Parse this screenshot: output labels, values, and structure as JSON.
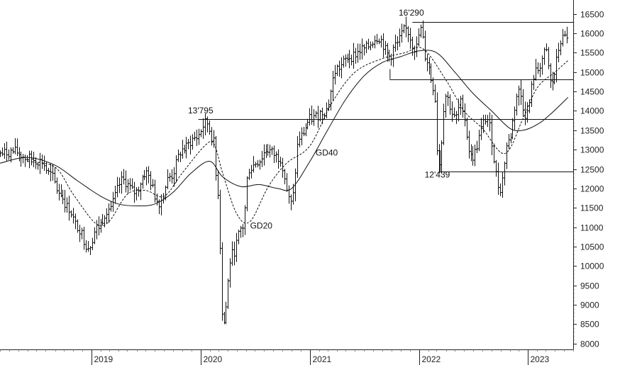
{
  "chart_data": {
    "type": "ohlc",
    "y_axis": {
      "position": "right",
      "ylim": [
        7850,
        16750
      ],
      "ticks": [
        8000,
        8500,
        9000,
        9500,
        10000,
        10500,
        11000,
        11500,
        12000,
        12500,
        13000,
        13500,
        14000,
        14500,
        15000,
        15500,
        16000,
        16500
      ]
    },
    "x_axis": {
      "xlim": [
        "2018-03-01",
        "2023-06-01"
      ],
      "ticks": [
        {
          "label": "2019",
          "date": "2019-01-01"
        },
        {
          "label": "2020",
          "date": "2020-01-01"
        },
        {
          "label": "2021",
          "date": "2021-01-01"
        },
        {
          "label": "2022",
          "date": "2022-01-01"
        },
        {
          "label": "2023",
          "date": "2023-01-01"
        }
      ]
    },
    "grid": false,
    "anchors": [
      {
        "d": "2018-03-01",
        "c": 12900
      },
      {
        "d": "2018-04-15",
        "c": 12950
      },
      {
        "d": "2018-06-01",
        "c": 12780
      },
      {
        "d": "2018-07-15",
        "c": 12700
      },
      {
        "d": "2018-08-15",
        "c": 12350
      },
      {
        "d": "2018-09-15",
        "c": 11900
      },
      {
        "d": "2018-10-15",
        "c": 11500
      },
      {
        "d": "2018-11-15",
        "c": 11000
      },
      {
        "d": "2018-12-20",
        "c": 10500
      },
      {
        "d": "2019-01-20",
        "c": 11000
      },
      {
        "d": "2019-03-01",
        "c": 11500
      },
      {
        "d": "2019-04-15",
        "c": 12200
      },
      {
        "d": "2019-05-25",
        "c": 11900
      },
      {
        "d": "2019-07-01",
        "c": 12400
      },
      {
        "d": "2019-08-15",
        "c": 11650
      },
      {
        "d": "2019-09-20",
        "c": 12300
      },
      {
        "d": "2019-11-01",
        "c": 13000
      },
      {
        "d": "2019-12-15",
        "c": 13300
      },
      {
        "d": "2020-01-20",
        "c": 13700
      },
      {
        "d": "2020-02-10",
        "c": 13300
      },
      {
        "d": "2020-02-25",
        "c": 12000
      },
      {
        "d": "2020-03-16",
        "c": 8500
      },
      {
        "d": "2020-04-15",
        "c": 10300
      },
      {
        "d": "2020-05-20",
        "c": 11000
      },
      {
        "d": "2020-06-10",
        "c": 12500
      },
      {
        "d": "2020-07-10",
        "c": 12700
      },
      {
        "d": "2020-08-10",
        "c": 13000
      },
      {
        "d": "2020-09-20",
        "c": 12800
      },
      {
        "d": "2020-10-30",
        "c": 11600
      },
      {
        "d": "2020-11-25",
        "c": 13300
      },
      {
        "d": "2021-01-05",
        "c": 13800
      },
      {
        "d": "2021-02-20",
        "c": 14000
      },
      {
        "d": "2021-04-01",
        "c": 15100
      },
      {
        "d": "2021-05-15",
        "c": 15400
      },
      {
        "d": "2021-07-01",
        "c": 15600
      },
      {
        "d": "2021-08-15",
        "c": 15900
      },
      {
        "d": "2021-09-25",
        "c": 15400
      },
      {
        "d": "2021-10-15",
        "c": 15700
      },
      {
        "d": "2021-11-17",
        "c": 16100
      },
      {
        "d": "2021-12-20",
        "c": 15600
      },
      {
        "d": "2022-01-05",
        "c": 16100
      },
      {
        "d": "2022-01-25",
        "c": 15300
      },
      {
        "d": "2022-02-20",
        "c": 14600
      },
      {
        "d": "2022-03-08",
        "c": 12600
      },
      {
        "d": "2022-03-30",
        "c": 14400
      },
      {
        "d": "2022-05-01",
        "c": 13800
      },
      {
        "d": "2022-05-20",
        "c": 14200
      },
      {
        "d": "2022-06-25",
        "c": 12800
      },
      {
        "d": "2022-08-15",
        "c": 13800
      },
      {
        "d": "2022-09-28",
        "c": 12000
      },
      {
        "d": "2022-10-25",
        "c": 13200
      },
      {
        "d": "2022-12-01",
        "c": 14500
      },
      {
        "d": "2022-12-25",
        "c": 13900
      },
      {
        "d": "2023-01-25",
        "c": 15000
      },
      {
        "d": "2023-03-01",
        "c": 15500
      },
      {
        "d": "2023-03-18",
        "c": 14700
      },
      {
        "d": "2023-04-25",
        "c": 15850
      },
      {
        "d": "2023-05-15",
        "c": 15950
      }
    ],
    "gd20": [
      {
        "d": "2018-06-01",
        "v": 12700
      },
      {
        "d": "2018-09-01",
        "v": 12550
      },
      {
        "d": "2018-11-01",
        "v": 11850
      },
      {
        "d": "2019-01-15",
        "v": 11100
      },
      {
        "d": "2019-03-01",
        "v": 11150
      },
      {
        "d": "2019-05-01",
        "v": 11850
      },
      {
        "d": "2019-07-01",
        "v": 11950
      },
      {
        "d": "2019-09-01",
        "v": 11800
      },
      {
        "d": "2019-11-01",
        "v": 12400
      },
      {
        "d": "2020-01-15",
        "v": 13100
      },
      {
        "d": "2020-02-15",
        "v": 13150
      },
      {
        "d": "2020-03-15",
        "v": 12400
      },
      {
        "d": "2020-05-01",
        "v": 11350
      },
      {
        "d": "2020-06-15",
        "v": 11150
      },
      {
        "d": "2020-08-15",
        "v": 12050
      },
      {
        "d": "2020-10-15",
        "v": 12650
      },
      {
        "d": "2021-01-01",
        "v": 13100
      },
      {
        "d": "2021-03-15",
        "v": 14200
      },
      {
        "d": "2021-06-01",
        "v": 15000
      },
      {
        "d": "2021-09-01",
        "v": 15350
      },
      {
        "d": "2021-11-15",
        "v": 15500
      },
      {
        "d": "2022-01-15",
        "v": 15600
      },
      {
        "d": "2022-04-01",
        "v": 14800
      },
      {
        "d": "2022-06-01",
        "v": 14000
      },
      {
        "d": "2022-08-01",
        "v": 13550
      },
      {
        "d": "2022-10-15",
        "v": 12900
      },
      {
        "d": "2022-12-15",
        "v": 13800
      },
      {
        "d": "2023-02-01",
        "v": 14600
      },
      {
        "d": "2023-04-01",
        "v": 15000
      },
      {
        "d": "2023-05-15",
        "v": 15300
      }
    ],
    "gd40": [
      {
        "d": "2018-03-01",
        "v": 12650
      },
      {
        "d": "2018-06-01",
        "v": 12800
      },
      {
        "d": "2018-09-01",
        "v": 12600
      },
      {
        "d": "2018-11-15",
        "v": 12200
      },
      {
        "d": "2019-02-01",
        "v": 11800
      },
      {
        "d": "2019-04-01",
        "v": 11600
      },
      {
        "d": "2019-06-01",
        "v": 11550
      },
      {
        "d": "2019-08-01",
        "v": 11600
      },
      {
        "d": "2019-10-01",
        "v": 11900
      },
      {
        "d": "2019-12-01",
        "v": 12400
      },
      {
        "d": "2020-02-01",
        "v": 12700
      },
      {
        "d": "2020-03-15",
        "v": 12300
      },
      {
        "d": "2020-05-15",
        "v": 12050
      },
      {
        "d": "2020-07-15",
        "v": 12100
      },
      {
        "d": "2020-09-15",
        "v": 12000
      },
      {
        "d": "2020-11-01",
        "v": 12000
      },
      {
        "d": "2021-01-01",
        "v": 12700
      },
      {
        "d": "2021-03-01",
        "v": 13500
      },
      {
        "d": "2021-05-01",
        "v": 14300
      },
      {
        "d": "2021-07-01",
        "v": 14900
      },
      {
        "d": "2021-09-01",
        "v": 15250
      },
      {
        "d": "2021-11-01",
        "v": 15400
      },
      {
        "d": "2022-01-01",
        "v": 15550
      },
      {
        "d": "2022-03-01",
        "v": 15500
      },
      {
        "d": "2022-05-01",
        "v": 15000
      },
      {
        "d": "2022-07-01",
        "v": 14450
      },
      {
        "d": "2022-09-01",
        "v": 14000
      },
      {
        "d": "2022-11-01",
        "v": 13550
      },
      {
        "d": "2022-12-15",
        "v": 13500
      },
      {
        "d": "2023-02-01",
        "v": 13650
      },
      {
        "d": "2023-03-15",
        "v": 13900
      },
      {
        "d": "2023-05-15",
        "v": 14350
      }
    ],
    "horizontal_levels": [
      {
        "label": "13'795",
        "value": 13795,
        "from": "2019-12-25",
        "to": "2023-06-01"
      },
      {
        "label": "16'290",
        "value": 16290,
        "from": "2021-12-10",
        "to": "2023-06-01"
      },
      {
        "label": "",
        "value": 14820,
        "from": "2021-09-25",
        "to": "2023-06-01"
      },
      {
        "label": "12'439",
        "value": 12439,
        "from": "2022-03-12",
        "to": "2023-06-01"
      }
    ],
    "annotations": [
      {
        "text": "GD40",
        "d": "2021-01-20",
        "v": 12850
      },
      {
        "text": "GD20",
        "d": "2020-06-15",
        "v": 10970
      },
      {
        "text": "13'795",
        "d": "2019-11-20",
        "v": 13940
      },
      {
        "text": "16'290",
        "d": "2021-10-25",
        "v": 16460
      },
      {
        "text": "12'439",
        "d": "2022-01-20",
        "v": 12285
      }
    ],
    "seed": 7
  }
}
